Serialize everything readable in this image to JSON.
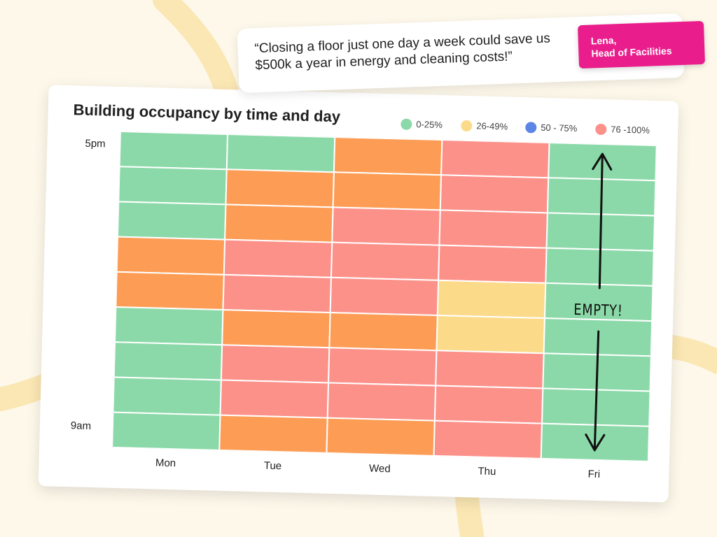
{
  "quote": {
    "text": "“Closing a floor just one day a week could save us $500k a year in energy and cleaning costs!”",
    "name": "Lena,",
    "role": "Head of Facilities"
  },
  "chart_data": {
    "type": "heatmap",
    "title": "Building occupancy by time and day",
    "legend": [
      {
        "label": "0-25%",
        "color": "#8bd9a8"
      },
      {
        "label": "26-49%",
        "color": "#fbdb8a"
      },
      {
        "label": "50 - 75%",
        "color": "#5b86e5"
      },
      {
        "label": "76 -100%",
        "color": "#fc918a"
      }
    ],
    "cell_colors": {
      "low": "#8bd9a8",
      "mid_low": "#fbdb8a",
      "mid_high": "#fd9c55",
      "high": "#fc918a"
    },
    "columns": [
      "Mon",
      "Tue",
      "Wed",
      "Thu",
      "Fri"
    ],
    "y_labels": {
      "top": "5pm",
      "bottom": "9am"
    },
    "grid": [
      [
        "low",
        "low",
        "mid_high",
        "high",
        "low"
      ],
      [
        "low",
        "mid_high",
        "mid_high",
        "high",
        "low"
      ],
      [
        "low",
        "mid_high",
        "high",
        "high",
        "low"
      ],
      [
        "mid_high",
        "high",
        "high",
        "high",
        "low"
      ],
      [
        "mid_high",
        "high",
        "high",
        "mid_low",
        "low"
      ],
      [
        "low",
        "mid_high",
        "mid_high",
        "mid_low",
        "low"
      ],
      [
        "low",
        "high",
        "high",
        "high",
        "low"
      ],
      [
        "low",
        "high",
        "high",
        "high",
        "low"
      ],
      [
        "low",
        "mid_high",
        "mid_high",
        "high",
        "low"
      ]
    ],
    "annotation": "EMPTY!"
  }
}
